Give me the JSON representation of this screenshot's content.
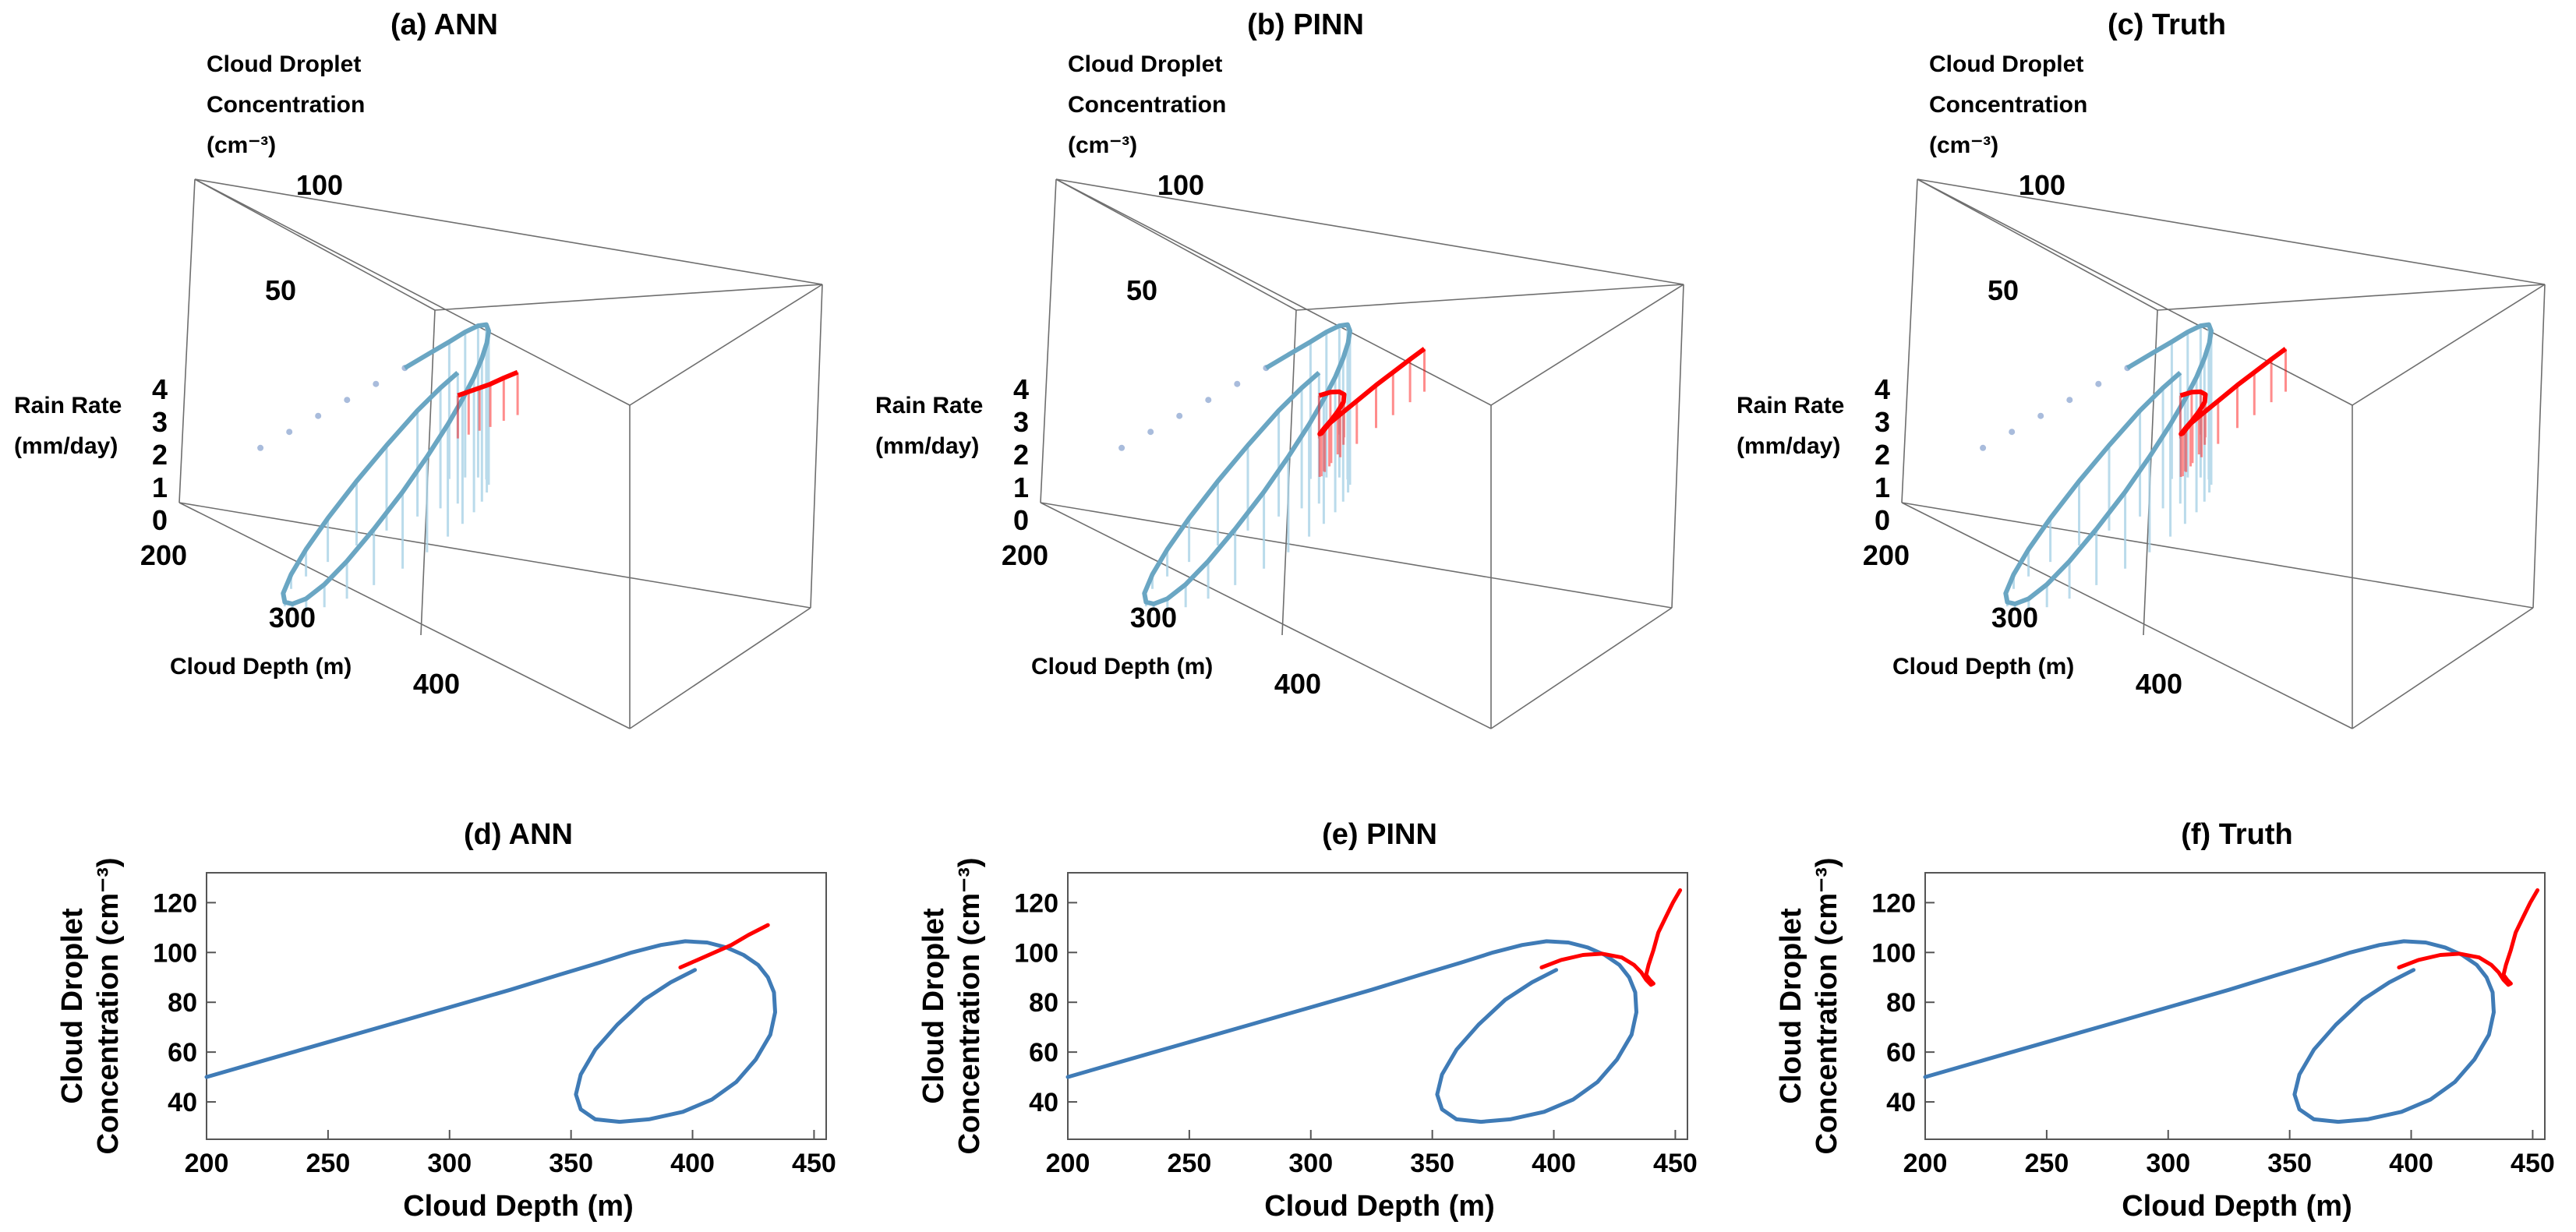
{
  "figure": {
    "colors": {
      "model": "#3f7bb6",
      "forecast": "#ff0000",
      "box": "#6e6e6e",
      "cube_path": "#6aa6c3",
      "curtain": "#a9d2e6",
      "dots": "#a9bcdc"
    },
    "panels_3d": [
      {
        "title": "(a) ANN",
        "concentration_label": [
          "Cloud Droplet",
          "Concentration",
          "(cm⁻³)"
        ],
        "rain_label": [
          "Rain Rate",
          "(mm/day)"
        ],
        "depth_label": "Cloud Depth (m)",
        "concentration_ticks": [
          "100",
          "50"
        ],
        "rain_ticks": [
          "4",
          "3",
          "2",
          "1",
          "0"
        ],
        "depth_ticks": [
          "200",
          "300",
          "400"
        ]
      },
      {
        "title": "(b) PINN",
        "concentration_label": [
          "Cloud Droplet",
          "Concentration",
          "(cm⁻³)"
        ],
        "rain_label": [
          "Rain Rate",
          "(mm/day)"
        ],
        "depth_label": "Cloud Depth (m)",
        "concentration_ticks": [
          "100",
          "50"
        ],
        "rain_ticks": [
          "4",
          "3",
          "2",
          "1",
          "0"
        ],
        "depth_ticks": [
          "200",
          "300",
          "400"
        ]
      },
      {
        "title": "(c) Truth",
        "concentration_label": [
          "Cloud Droplet",
          "Concentration",
          "(cm⁻³)"
        ],
        "rain_label": [
          "Rain Rate",
          "(mm/day)"
        ],
        "depth_label": "Cloud Depth (m)",
        "concentration_ticks": [
          "100",
          "50"
        ],
        "rain_ticks": [
          "4",
          "3",
          "2",
          "1",
          "0"
        ],
        "depth_ticks": [
          "200",
          "300",
          "400"
        ]
      }
    ]
  },
  "chart_data": [
    {
      "type": "line",
      "title": "(d) ANN",
      "xlabel": "Cloud Depth (m)",
      "ylabel": [
        "Cloud Droplet",
        "Concentration (cm⁻³)"
      ],
      "xlim": [
        200,
        455
      ],
      "ylim": [
        25,
        132
      ],
      "xticks": [
        200,
        250,
        300,
        350,
        400,
        450
      ],
      "yticks": [
        40,
        60,
        80,
        100,
        120
      ],
      "series": [
        {
          "name": "trajectory",
          "color": "#3f7bb6",
          "x": [
            200,
            225,
            250,
            275,
            300,
            325,
            345,
            362,
            375,
            387,
            397,
            406,
            414,
            421,
            427,
            431,
            433.5,
            434,
            432,
            426,
            418,
            408,
            396,
            382,
            370,
            360,
            354,
            352,
            354,
            360,
            369,
            380,
            391,
            401
          ],
          "y": [
            50,
            57,
            64,
            71,
            78,
            85,
            91,
            96,
            100,
            103,
            104.5,
            104,
            102,
            99,
            95,
            90,
            84,
            76,
            67,
            57,
            48,
            41,
            36,
            33,
            32,
            33,
            37,
            43,
            51,
            61,
            71,
            81,
            88,
            93
          ]
        },
        {
          "name": "prediction",
          "color": "#ff0000",
          "x": [
            395,
            402,
            409,
            416,
            423,
            431
          ],
          "y": [
            94,
            97,
            100,
            103,
            107,
            111
          ]
        }
      ]
    },
    {
      "type": "line",
      "title": "(e) PINN",
      "xlabel": "Cloud Depth (m)",
      "ylabel": [
        "Cloud Droplet",
        "Concentration (cm⁻³)"
      ],
      "xlim": [
        200,
        455
      ],
      "ylim": [
        25,
        132
      ],
      "xticks": [
        200,
        250,
        300,
        350,
        400,
        450
      ],
      "yticks": [
        40,
        60,
        80,
        100,
        120
      ],
      "series": [
        {
          "name": "trajectory",
          "color": "#3f7bb6",
          "x": [
            200,
            225,
            250,
            275,
            300,
            325,
            345,
            362,
            375,
            387,
            397,
            406,
            414,
            421,
            427,
            431,
            433.5,
            434,
            432,
            426,
            418,
            408,
            396,
            382,
            370,
            360,
            354,
            352,
            354,
            360,
            369,
            380,
            391,
            401
          ],
          "y": [
            50,
            57,
            64,
            71,
            78,
            85,
            91,
            96,
            100,
            103,
            104.5,
            104,
            102,
            99,
            95,
            90,
            84,
            76,
            67,
            57,
            48,
            41,
            36,
            33,
            32,
            33,
            37,
            43,
            51,
            61,
            71,
            81,
            88,
            93
          ]
        },
        {
          "name": "prediction",
          "color": "#ff0000",
          "x": [
            395,
            403,
            412,
            420,
            428,
            433,
            436,
            438,
            440,
            441,
            439.5,
            438,
            439,
            441,
            443,
            446,
            449,
            452
          ],
          "y": [
            94,
            97,
            99,
            99.5,
            98,
            95,
            92,
            89,
            87,
            87.5,
            89,
            91,
            95,
            101,
            108,
            114,
            120,
            125
          ]
        }
      ]
    },
    {
      "type": "line",
      "title": "(f) Truth",
      "xlabel": "Cloud Depth (m)",
      "ylabel": [
        "Cloud Droplet",
        "Concentration (cm⁻³)"
      ],
      "xlim": [
        200,
        455
      ],
      "ylim": [
        25,
        132
      ],
      "xticks": [
        200,
        250,
        300,
        350,
        400,
        450
      ],
      "yticks": [
        40,
        60,
        80,
        100,
        120
      ],
      "series": [
        {
          "name": "trajectory",
          "color": "#3f7bb6",
          "x": [
            200,
            225,
            250,
            275,
            300,
            325,
            345,
            362,
            375,
            387,
            397,
            406,
            414,
            421,
            427,
            431,
            433.5,
            434,
            432,
            426,
            418,
            408,
            396,
            382,
            370,
            360,
            354,
            352,
            354,
            360,
            369,
            380,
            391,
            401
          ],
          "y": [
            50,
            57,
            64,
            71,
            78,
            85,
            91,
            96,
            100,
            103,
            104.5,
            104,
            102,
            99,
            95,
            90,
            84,
            76,
            67,
            57,
            48,
            41,
            36,
            33,
            32,
            33,
            37,
            43,
            51,
            61,
            71,
            81,
            88,
            93
          ]
        },
        {
          "name": "prediction",
          "color": "#ff0000",
          "x": [
            395,
            403,
            412,
            420,
            428,
            433,
            436,
            438,
            440,
            441,
            439.5,
            438,
            439,
            441,
            443,
            446,
            449,
            452
          ],
          "y": [
            94,
            97,
            99,
            99.5,
            98,
            95,
            92,
            89,
            87,
            87.5,
            89,
            91,
            95,
            101,
            108,
            114,
            120,
            125
          ]
        }
      ]
    }
  ]
}
